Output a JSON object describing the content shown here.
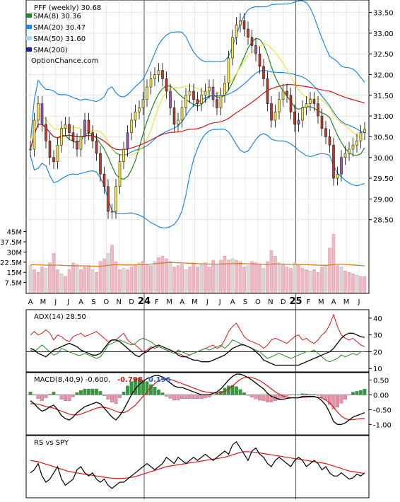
{
  "colors": {
    "sma8": "#1f8a1f",
    "sma20": "#1e88e5",
    "sma50": "#f0e23a",
    "sma200": "#d8171a",
    "sma200_legend": "#1f1f9a",
    "price_up": "#f7e34a",
    "price_down": "#c0392b",
    "price_purple": "#9b59b6",
    "volume_bar": "#f4b7c2",
    "volume_gray": "#d9d9d9",
    "volume_avg": "#e07b1a",
    "grid": "#d9d9d9",
    "adx": "#000000",
    "plus_di": "#1f8a1f",
    "minus_di": "#d8171a",
    "macd": "#000000",
    "signal": "#d8171a",
    "hist_pos": "#2e9c3a",
    "hist_neg": "#f08fa5",
    "macd_value_red": "#d8171a",
    "macd_value_blue": "#1e5fc0",
    "rs": "#000000",
    "rs_ma": "#d8171a"
  },
  "legend": {
    "title": "PFF (weekly) 30.68",
    "sma8": "SMA(8) 30.36",
    "sma20": "SMA(20) 30.47",
    "sma50": "SMA(50) 31.60",
    "sma200": "SMA(200)",
    "source": "OptionChance.com"
  },
  "indicators": {
    "adx_label": "ADX(14) 28.50",
    "macd_label": "MACD(8,40,9) -0.600,",
    "macd_val1": "-0.798,",
    "macd_val2": "0.196",
    "rs_label": "RS vs SPY"
  },
  "chart_data": [
    {
      "type": "candlestick",
      "title": "PFF (weekly) 30.68",
      "ylim": [
        28.0,
        33.8
      ],
      "yticks": [
        "33.50",
        "33.00",
        "32.50",
        "32.00",
        "31.50",
        "31.00",
        "30.50",
        "30.00",
        "29.50",
        "29.00",
        "28.50"
      ],
      "xlabels": [
        "A",
        "M",
        "J",
        "J",
        "A",
        "S",
        "O",
        "N",
        "D",
        "24",
        "F",
        "M",
        "A",
        "M",
        "J",
        "J",
        "A",
        "S",
        "O",
        "N",
        "D",
        "25",
        "F",
        "M",
        "A",
        "M",
        "J"
      ],
      "bold_labels": [
        "24",
        "25"
      ],
      "close": [
        30.2,
        30.9,
        31.3,
        30.8,
        30.4,
        30.0,
        29.9,
        30.3,
        30.7,
        30.8,
        30.6,
        30.4,
        30.2,
        30.5,
        30.9,
        30.6,
        30.4,
        30.1,
        29.6,
        29.3,
        28.7,
        28.7,
        29.3,
        29.9,
        30.2,
        30.6,
        30.9,
        31.1,
        31.2,
        31.4,
        31.7,
        31.9,
        32.0,
        32.1,
        31.9,
        31.6,
        31.2,
        30.8,
        30.9,
        31.2,
        31.5,
        31.6,
        31.4,
        31.3,
        31.5,
        31.6,
        31.7,
        31.4,
        31.2,
        31.5,
        31.8,
        32.4,
        32.9,
        33.2,
        33.3,
        33.1,
        32.9,
        32.7,
        32.5,
        32.2,
        31.9,
        31.3,
        30.9,
        31.1,
        31.4,
        31.6,
        31.5,
        31.1,
        30.8,
        30.9,
        31.2,
        31.3,
        31.4,
        31.3,
        31.0,
        30.7,
        30.5,
        30.3,
        29.5,
        29.6,
        30.0,
        30.1,
        30.2,
        30.3,
        30.4,
        30.6,
        30.68
      ],
      "volume_ylim": [
        0,
        50
      ],
      "volume_yticks": [
        "45M",
        "37.5M",
        "30M",
        "22.5M",
        "15M",
        "7.5M"
      ],
      "volume": [
        20,
        17,
        15,
        19,
        18,
        22,
        29,
        17,
        14,
        12,
        17,
        22,
        21,
        17,
        19,
        20,
        17,
        15,
        23,
        25,
        29,
        35,
        23,
        17,
        18,
        17,
        19,
        20,
        22,
        23,
        21,
        20,
        23,
        26,
        27,
        25,
        23,
        19,
        20,
        21,
        17,
        19,
        22,
        19,
        21,
        22,
        19,
        24,
        21,
        24,
        27,
        24,
        25,
        24,
        23,
        19,
        20,
        23,
        22,
        21,
        18,
        23,
        31,
        27,
        22,
        21,
        19,
        18,
        22,
        21,
        18,
        17,
        16,
        17,
        15,
        19,
        20,
        33,
        43,
        20,
        19,
        16,
        15,
        14,
        13,
        12,
        12
      ],
      "volume_avg": [
        20.5,
        20.6,
        20.5,
        20.4,
        20.3,
        20.2,
        20.3,
        20.3,
        20.2,
        20.0,
        19.9,
        19.9,
        19.8,
        19.8,
        19.8,
        19.7,
        19.6,
        19.6,
        19.6,
        19.8,
        20.1,
        20.5,
        20.6,
        20.5,
        20.4,
        20.4,
        20.4,
        20.5,
        20.7,
        20.9,
        21.0,
        21.1,
        21.3,
        21.6,
        21.8,
        22.1,
        22.3,
        22.2,
        22.1,
        22.0,
        21.8,
        21.7,
        21.6,
        21.4,
        21.3,
        21.2,
        21.1,
        21.1,
        21.1,
        21.2,
        21.2,
        21.3,
        21.4,
        21.4,
        21.5,
        21.4,
        21.3,
        21.2,
        21.2,
        21.1,
        21.0,
        21.0,
        21.1,
        21.2,
        21.2,
        21.1,
        21.0,
        20.9,
        20.9,
        20.8,
        20.7,
        20.6,
        20.5,
        20.4,
        20.3,
        20.2,
        20.2,
        20.4,
        20.8,
        20.9,
        20.9,
        20.8,
        20.6,
        20.4,
        20.2,
        20.0,
        19.8
      ]
    },
    {
      "type": "line",
      "title": "ADX(14) 28.50",
      "ylim": [
        8,
        45
      ],
      "yticks": [
        40,
        30,
        20,
        10
      ],
      "series": [
        {
          "name": "ADX(14)",
          "values": [
            22,
            21,
            19,
            18,
            17,
            19,
            21,
            22,
            23,
            24,
            25,
            24,
            23,
            21,
            20,
            19,
            18,
            18,
            19,
            22,
            25,
            27,
            27,
            26,
            24,
            22,
            20,
            18,
            17,
            19,
            20,
            22,
            23,
            24,
            23,
            22,
            21,
            20,
            18,
            17,
            17,
            16,
            15,
            15,
            14,
            14,
            14,
            15,
            16,
            17,
            18,
            20,
            22,
            23,
            24,
            24,
            23,
            22,
            20,
            18,
            15,
            14,
            13,
            12,
            12,
            12,
            12,
            12,
            12,
            12,
            13,
            14,
            15,
            16,
            17,
            18,
            19,
            20,
            22,
            25,
            28,
            30,
            31,
            31,
            30,
            29,
            28.5
          ]
        },
        {
          "name": "+DI",
          "values": [
            21,
            20,
            22,
            24,
            22,
            20,
            18,
            19,
            22,
            21,
            20,
            19,
            18,
            18,
            19,
            18,
            17,
            16,
            17,
            20,
            24,
            25,
            26,
            27,
            26,
            25,
            24,
            25,
            27,
            28,
            27,
            26,
            24,
            23,
            22,
            21,
            20,
            19,
            21,
            20,
            19,
            18,
            19,
            20,
            21,
            22,
            21,
            22,
            23,
            24,
            22,
            24,
            27,
            26,
            25,
            24,
            23,
            22,
            21,
            20,
            18,
            16,
            17,
            18,
            19,
            18,
            17,
            16,
            17,
            18,
            19,
            20,
            20,
            21,
            19,
            17,
            15,
            14,
            15,
            16,
            18,
            17,
            18,
            19,
            18,
            20,
            20
          ]
        },
        {
          "name": "-DI",
          "values": [
            30,
            32,
            30,
            31,
            33,
            31,
            27,
            30,
            29,
            27,
            26,
            29,
            30,
            31,
            29,
            30,
            31,
            32,
            30,
            28,
            26,
            27,
            27,
            29,
            31,
            27,
            25,
            24,
            22,
            20,
            21,
            23,
            22,
            23,
            22,
            21,
            20,
            20,
            19,
            18,
            17,
            18,
            19,
            20,
            21,
            22,
            23,
            24,
            22,
            23,
            27,
            32,
            35,
            37,
            33,
            29,
            27,
            26,
            25,
            24,
            22,
            24,
            27,
            28,
            27,
            26,
            25,
            27,
            29,
            30,
            27,
            28,
            26,
            25,
            27,
            30,
            32,
            36,
            42,
            35,
            30,
            28,
            27,
            28,
            26,
            24,
            23
          ]
        }
      ]
    },
    {
      "type": "line",
      "title": "MACD(8,40,9) -0.600, -0.798, 0.196",
      "ylim": [
        -1.35,
        0.75
      ],
      "yticks": [
        "0.50",
        "0.00",
        "-0.50",
        "-1.00"
      ],
      "series": [
        {
          "name": "MACD",
          "values": [
            -0.2,
            -0.3,
            -0.45,
            -0.55,
            -0.5,
            -0.4,
            -0.35,
            -0.5,
            -0.7,
            -0.8,
            -0.85,
            -0.75,
            -0.6,
            -0.5,
            -0.4,
            -0.35,
            -0.3,
            -0.25,
            -0.3,
            -0.45,
            -0.6,
            -0.75,
            -0.85,
            -0.7,
            -0.5,
            -0.25,
            0.0,
            0.2,
            0.35,
            0.45,
            0.55,
            0.6,
            0.65,
            0.65,
            0.6,
            0.5,
            0.4,
            0.3,
            0.25,
            0.25,
            0.2,
            0.15,
            0.1,
            0.05,
            0.0,
            0.0,
            0.0,
            0.05,
            0.1,
            0.2,
            0.35,
            0.5,
            0.62,
            0.7,
            0.7,
            0.65,
            0.58,
            0.5,
            0.4,
            0.3,
            0.2,
            0.05,
            -0.05,
            -0.1,
            -0.15,
            -0.15,
            -0.12,
            -0.1,
            -0.1,
            -0.1,
            -0.05,
            -0.05,
            -0.05,
            -0.05,
            -0.1,
            -0.2,
            -0.35,
            -0.6,
            -0.9,
            -1.0,
            -1.0,
            -0.95,
            -0.85,
            -0.75,
            -0.7,
            -0.65,
            -0.6
          ]
        },
        {
          "name": "Signal",
          "values": [
            -0.3,
            -0.3,
            -0.32,
            -0.35,
            -0.4,
            -0.42,
            -0.45,
            -0.5,
            -0.55,
            -0.6,
            -0.65,
            -0.68,
            -0.68,
            -0.65,
            -0.6,
            -0.55,
            -0.5,
            -0.45,
            -0.42,
            -0.42,
            -0.45,
            -0.5,
            -0.55,
            -0.6,
            -0.6,
            -0.55,
            -0.45,
            -0.35,
            -0.2,
            -0.05,
            0.1,
            0.25,
            0.38,
            0.48,
            0.53,
            0.55,
            0.52,
            0.48,
            0.43,
            0.38,
            0.33,
            0.28,
            0.23,
            0.18,
            0.13,
            0.1,
            0.08,
            0.06,
            0.06,
            0.08,
            0.12,
            0.2,
            0.3,
            0.42,
            0.52,
            0.58,
            0.6,
            0.58,
            0.54,
            0.48,
            0.4,
            0.3,
            0.2,
            0.1,
            0.02,
            -0.04,
            -0.08,
            -0.1,
            -0.1,
            -0.1,
            -0.09,
            -0.08,
            -0.07,
            -0.07,
            -0.08,
            -0.11,
            -0.17,
            -0.27,
            -0.42,
            -0.58,
            -0.72,
            -0.8,
            -0.84,
            -0.84,
            -0.82,
            -0.8,
            -0.798
          ]
        },
        {
          "name": "Histogram",
          "values": [
            0.1,
            0.0,
            -0.13,
            -0.2,
            -0.1,
            0.02,
            0.1,
            0.0,
            -0.15,
            -0.2,
            -0.2,
            -0.07,
            0.08,
            0.15,
            0.2,
            0.2,
            0.2,
            0.2,
            0.12,
            -0.03,
            -0.15,
            -0.25,
            -0.3,
            -0.1,
            0.1,
            0.3,
            0.45,
            0.55,
            0.55,
            0.5,
            0.45,
            0.35,
            0.27,
            0.17,
            0.07,
            -0.05,
            -0.12,
            -0.18,
            -0.18,
            -0.13,
            -0.13,
            -0.13,
            -0.13,
            -0.13,
            -0.13,
            -0.1,
            -0.08,
            -0.01,
            0.04,
            0.12,
            0.23,
            0.3,
            0.32,
            0.28,
            0.18,
            0.07,
            -0.02,
            -0.08,
            -0.14,
            -0.18,
            -0.2,
            -0.25,
            -0.25,
            -0.2,
            -0.17,
            -0.11,
            -0.04,
            0.0,
            0.0,
            0.0,
            0.04,
            0.03,
            0.02,
            0.02,
            -0.02,
            -0.09,
            -0.18,
            -0.33,
            -0.48,
            -0.42,
            -0.28,
            -0.15,
            -0.01,
            0.09,
            0.12,
            0.15,
            0.196
          ]
        }
      ]
    },
    {
      "type": "line",
      "title": "RS vs SPY",
      "ylim": [
        0,
        10
      ],
      "series": [
        {
          "name": "RS vs SPY",
          "values": [
            4,
            4.5,
            5.5,
            3.5,
            2.5,
            3,
            4,
            5,
            3,
            2,
            2.5,
            3,
            4.5,
            5,
            4,
            3.5,
            4,
            3,
            2.5,
            3,
            2,
            1.5,
            2,
            2.5,
            2.5,
            3,
            3.5,
            4,
            4.5,
            5,
            5.5,
            5,
            4.5,
            5,
            5.5,
            6.5,
            6,
            5.5,
            6.5,
            6,
            5.5,
            6,
            6.5,
            6,
            6.5,
            7,
            6.5,
            6,
            6.5,
            7,
            7.5,
            7,
            8.5,
            9,
            8,
            7,
            6,
            7.5,
            8,
            7,
            6.5,
            5.5,
            5,
            6,
            6.5,
            6,
            5.5,
            5,
            6,
            6.5,
            6,
            5,
            5.5,
            6,
            5.5,
            4.5,
            5,
            4,
            3.5,
            3.5,
            4,
            3.5,
            3,
            3.2,
            3.8,
            3.5,
            4
          ]
        },
        {
          "name": "RS MA",
          "values": [
            6,
            5.9,
            5.8,
            5.6,
            5.4,
            5.2,
            5,
            4.8,
            4.6,
            4.4,
            4.2,
            4.1,
            4,
            3.9,
            3.8,
            3.7,
            3.6,
            3.5,
            3.4,
            3.3,
            3.2,
            3.15,
            3.1,
            3.1,
            3.15,
            3.2,
            3.3,
            3.4,
            3.6,
            3.8,
            4,
            4.2,
            4.4,
            4.6,
            4.8,
            5,
            5.1,
            5.2,
            5.3,
            5.4,
            5.5,
            5.6,
            5.7,
            5.8,
            5.9,
            6,
            6.1,
            6.2,
            6.3,
            6.4,
            6.5,
            6.7,
            6.9,
            7.1,
            7.3,
            7.4,
            7.4,
            7.35,
            7.3,
            7.2,
            7.1,
            7,
            6.9,
            6.8,
            6.7,
            6.6,
            6.5,
            6.4,
            6.3,
            6.2,
            6.1,
            6,
            5.9,
            5.8,
            5.7,
            5.6,
            5.5,
            5.3,
            5.1,
            4.9,
            4.7,
            4.5,
            4.3,
            4.2,
            4.1,
            4,
            3.9
          ]
        }
      ]
    }
  ]
}
